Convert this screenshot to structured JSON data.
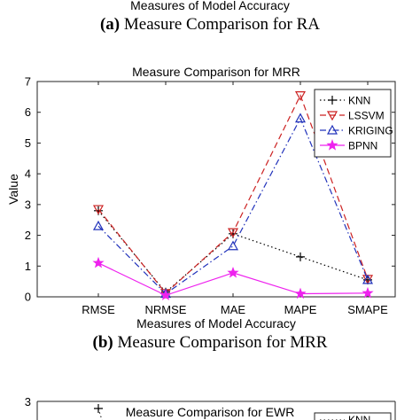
{
  "top_residual": {
    "xlabel": "Measures of Model Accuracy",
    "caption_letter": "(a)",
    "caption_text": "Measure Comparison for RA"
  },
  "caption_b": {
    "letter": "(b)",
    "text": "Measure Comparison for MRR"
  },
  "chart_data": [
    {
      "type": "line",
      "title": "Measure Comparison for MRR",
      "xlabel": "Measures of Model Accuracy",
      "ylabel": "Value",
      "categories": [
        "RMSE",
        "NRMSE",
        "MAE",
        "MAPE",
        "SMAPE"
      ],
      "ylim": [
        0,
        7
      ],
      "yticks": [
        0,
        1,
        2,
        3,
        4,
        5,
        6,
        7
      ],
      "legend_position": "top-right",
      "series": [
        {
          "name": "KNN",
          "values": [
            2.8,
            0.15,
            2.05,
            1.3,
            0.55
          ],
          "color": "#000000",
          "marker": "plus",
          "dash": "dotted"
        },
        {
          "name": "LSSVM",
          "values": [
            2.85,
            0.12,
            2.1,
            6.55,
            0.58
          ],
          "color": "#cc2222",
          "marker": "triangle-down",
          "dash": "dashed"
        },
        {
          "name": "KRIGING",
          "values": [
            2.3,
            0.1,
            1.65,
            5.8,
            0.55
          ],
          "color": "#2233bb",
          "marker": "triangle-up",
          "dash": "dashdot"
        },
        {
          "name": "BPNN",
          "values": [
            1.1,
            0.05,
            0.78,
            0.1,
            0.12
          ],
          "color": "#ee22ee",
          "marker": "star",
          "dash": "solid"
        }
      ]
    },
    {
      "type": "line",
      "title": "Measure Comparison for EWR",
      "ylim_top_tick": "3",
      "visible_point": {
        "series": "KNN",
        "value": 2.75
      },
      "legend_first": "KNN"
    }
  ]
}
